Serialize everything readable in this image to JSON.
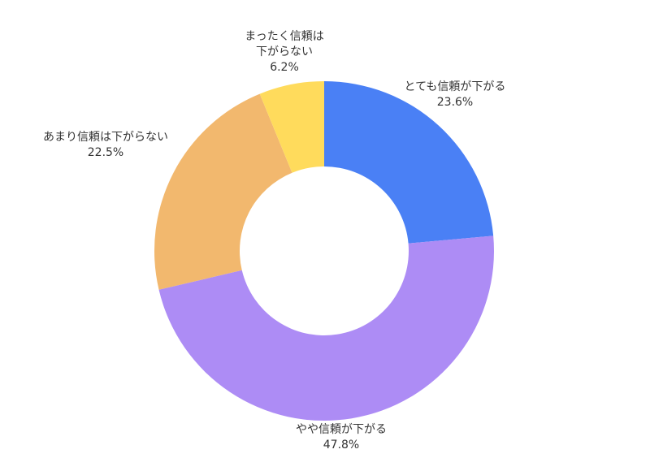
{
  "chart_data": {
    "type": "pie",
    "style": "donut",
    "start_angle_deg": 0,
    "direction": "clockwise",
    "slices": [
      {
        "label_lines": [
          "とても信頼が下がる"
        ],
        "value": 23.6,
        "value_label": "23.6%",
        "color": "#4A80F5"
      },
      {
        "label_lines": [
          "やや信頼が下がる"
        ],
        "value": 47.8,
        "value_label": "47.8%",
        "color": "#AD8CF5"
      },
      {
        "label_lines": [
          "あまり信頼は下がらない"
        ],
        "value": 22.5,
        "value_label": "22.5%",
        "color": "#F2B86E"
      },
      {
        "label_lines": [
          "まったく信頼は",
          "下がらない"
        ],
        "value": 6.2,
        "value_label": "6.2%",
        "color": "#FFDB5C"
      }
    ]
  }
}
